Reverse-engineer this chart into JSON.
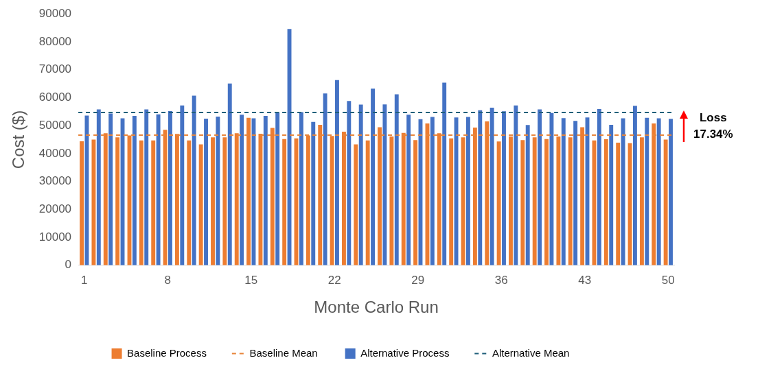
{
  "chart_data": {
    "type": "bar",
    "xlabel": "Monte Carlo Run",
    "ylabel": "Cost ($)",
    "categories": [
      "1",
      null,
      null,
      null,
      null,
      null,
      null,
      "8",
      null,
      null,
      null,
      null,
      null,
      null,
      "15",
      null,
      null,
      null,
      null,
      null,
      null,
      "22",
      null,
      null,
      null,
      null,
      null,
      null,
      "29",
      null,
      null,
      null,
      null,
      null,
      null,
      "36",
      null,
      null,
      null,
      null,
      null,
      null,
      "43",
      null,
      null,
      null,
      null,
      null,
      null,
      "50"
    ],
    "series": [
      {
        "name": "Baseline Process",
        "color": "#ed7d31",
        "values": [
          44400,
          45000,
          47300,
          45800,
          46500,
          44700,
          44700,
          48500,
          47000,
          44700,
          43300,
          45800,
          45800,
          47300,
          52800,
          47100,
          49200,
          45200,
          45400,
          46500,
          50300,
          46300,
          47800,
          43300,
          44700,
          49400,
          46100,
          47400,
          44800,
          50800,
          47300,
          45400,
          45800,
          49300,
          51500,
          44300,
          46100,
          44800,
          45800,
          45200,
          46100,
          45800,
          49400,
          44700,
          45100,
          43900,
          43700,
          45800,
          50800,
          45000
        ]
      },
      {
        "name": "Alternative Process",
        "color": "#4472c4",
        "values": [
          53600,
          55800,
          54300,
          52600,
          53500,
          55800,
          54000,
          55200,
          57200,
          60700,
          52500,
          53200,
          65100,
          53900,
          52600,
          53500,
          54800,
          84600,
          54800,
          51300,
          61500,
          66300,
          58800,
          57500,
          63200,
          57600,
          61200,
          53900,
          52300,
          53100,
          65400,
          52900,
          53100,
          55500,
          56400,
          55100,
          57200,
          50200,
          55800,
          54500,
          52700,
          51700,
          52900,
          55900,
          50300,
          52600,
          57100,
          52800,
          52600,
          52400
        ]
      }
    ],
    "ylim": [
      0,
      90000
    ],
    "yticks": [
      0,
      10000,
      20000,
      30000,
      40000,
      50000,
      60000,
      70000,
      80000,
      90000
    ],
    "grid": false,
    "legend": "bottom",
    "ref_lines": [
      {
        "axis": "y",
        "value": 46600,
        "label": "Baseline Mean",
        "color": "#e8853a",
        "line_style": "dashed"
      },
      {
        "axis": "y",
        "value": 54700,
        "label": "Alternative Mean",
        "color": "#1f5f7a",
        "line_style": "dashed"
      }
    ],
    "annotations": [
      "Loss 17.34%"
    ]
  }
}
